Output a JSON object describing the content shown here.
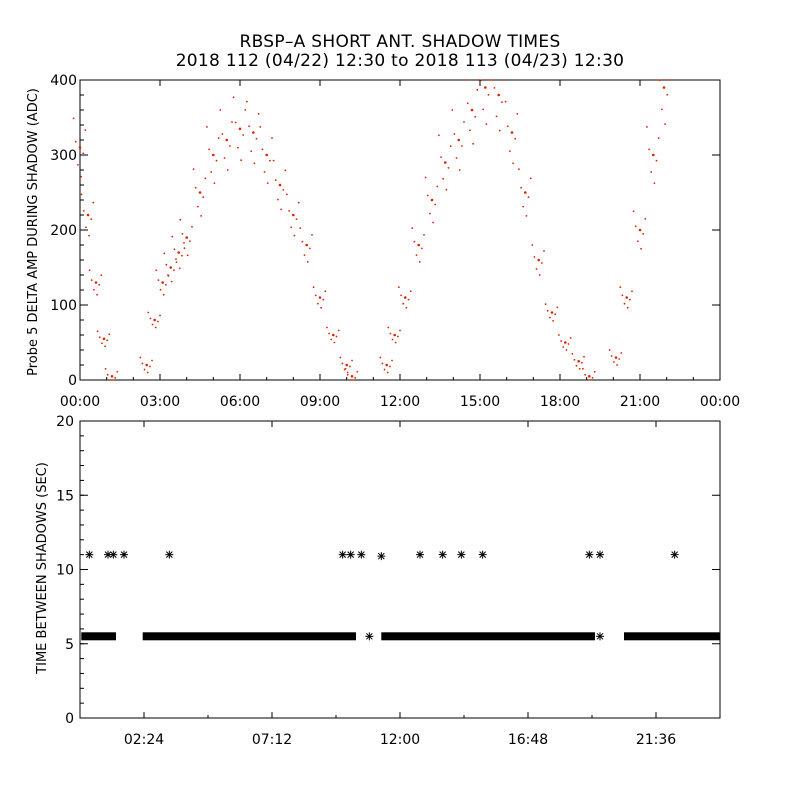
{
  "title": "RBSP–A SHORT ANT. SHADOW TIMES",
  "subtitle": "2018 112 (04/22) 12:30 to 2018 113 (04/23) 12:30",
  "chart_data": [
    {
      "type": "scatter",
      "ylabel": "Probe 5 DELTA AMP DURING SHADOW (ADC)",
      "xlabel": "",
      "xlim": [
        0,
        24
      ],
      "ylim": [
        0,
        400
      ],
      "xticks": [
        "00:00",
        "03:00",
        "06:00",
        "09:00",
        "12:00",
        "15:00",
        "18:00",
        "21:00",
        "00:00"
      ],
      "yticks": [
        "0",
        "100",
        "200",
        "300",
        "400"
      ],
      "grid": false,
      "color": "#dd2200",
      "series": [
        {
          "x": [
            0.0,
            0.3,
            0.6,
            0.9,
            1.2,
            2.5,
            2.8,
            3.1,
            3.4,
            3.7,
            4.0,
            4.5,
            5.0,
            5.5,
            6.0,
            6.5,
            7.0,
            7.5,
            8.0,
            8.5,
            9.0,
            9.5,
            10.0,
            10.2,
            11.5,
            11.8,
            12.2,
            12.7,
            13.2,
            13.7,
            14.2,
            14.7,
            15.2,
            15.7,
            16.2,
            16.7,
            17.2,
            17.7,
            18.2,
            18.7,
            19.1,
            20.1,
            20.5,
            21.0,
            21.5,
            21.9
          ],
          "y": [
            310,
            220,
            130,
            55,
            5,
            20,
            80,
            130,
            150,
            170,
            190,
            250,
            300,
            320,
            335,
            330,
            300,
            260,
            220,
            180,
            110,
            60,
            20,
            5,
            20,
            60,
            110,
            180,
            240,
            290,
            320,
            360,
            390,
            380,
            330,
            250,
            160,
            90,
            50,
            25,
            5,
            30,
            110,
            200,
            300,
            390
          ]
        }
      ]
    },
    {
      "type": "scatter",
      "ylabel": "TIME BETWEEN SHADOWS (SEC)",
      "xlabel": "",
      "xlim": [
        0,
        24
      ],
      "ylim": [
        0,
        20
      ],
      "xticks": [
        "02:24",
        "07:12",
        "12:00",
        "16:48",
        "21:36"
      ],
      "yticks": [
        "0",
        "5",
        "10",
        "15",
        "20"
      ],
      "grid": false,
      "marker": "*",
      "color": "#000000",
      "baseline_value": 5.5,
      "baseline_segments": [
        [
          0.05,
          1.35
        ],
        [
          2.35,
          10.35
        ],
        [
          11.3,
          19.4
        ],
        [
          20.4,
          24.0
        ]
      ],
      "outliers": [
        {
          "x": 0.35,
          "y": 11.0
        },
        {
          "x": 1.05,
          "y": 11.0
        },
        {
          "x": 1.25,
          "y": 11.0
        },
        {
          "x": 1.65,
          "y": 11.0
        },
        {
          "x": 3.35,
          "y": 11.0
        },
        {
          "x": 9.85,
          "y": 11.0
        },
        {
          "x": 10.15,
          "y": 11.0
        },
        {
          "x": 10.55,
          "y": 11.0
        },
        {
          "x": 11.3,
          "y": 10.9
        },
        {
          "x": 12.75,
          "y": 11.0
        },
        {
          "x": 13.6,
          "y": 11.0
        },
        {
          "x": 14.3,
          "y": 11.0
        },
        {
          "x": 15.1,
          "y": 11.0
        },
        {
          "x": 19.1,
          "y": 11.0
        },
        {
          "x": 19.5,
          "y": 11.0
        },
        {
          "x": 22.3,
          "y": 11.0
        },
        {
          "x": 10.85,
          "y": 5.5
        },
        {
          "x": 19.5,
          "y": 5.5
        }
      ]
    }
  ]
}
